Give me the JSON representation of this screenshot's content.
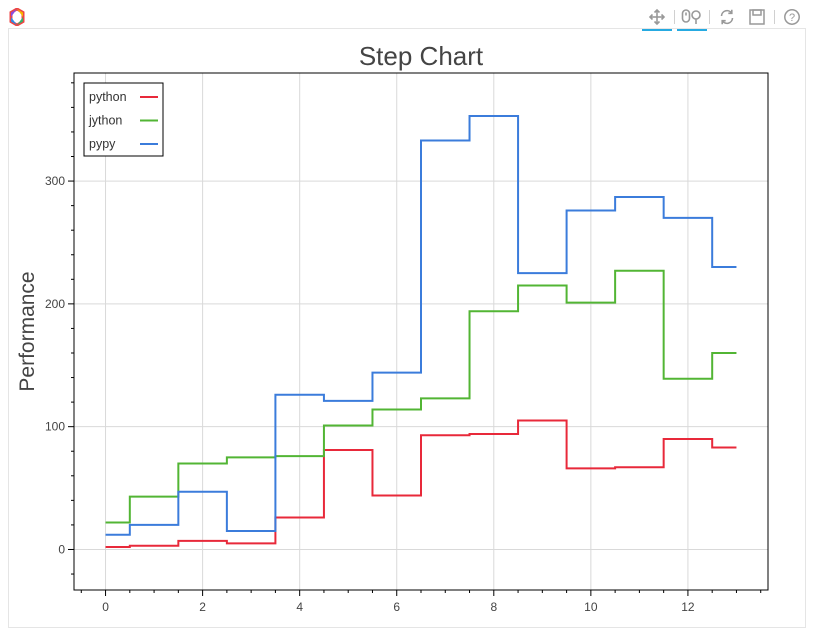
{
  "toolbar": {
    "tools": [
      {
        "name": "pan-tool",
        "icon": "move-arrows-icon",
        "active": true
      },
      {
        "name": "wheel-zoom-tool",
        "icon": "wheel-zoom-icon",
        "active": true
      },
      {
        "name": "reset-tool",
        "icon": "refresh-icon",
        "active": false
      },
      {
        "name": "save-tool",
        "icon": "save-icon",
        "active": false
      },
      {
        "name": "help-tool",
        "icon": "help-circle-icon",
        "active": false
      }
    ],
    "accent": "#26aae1"
  },
  "chart_data": {
    "type": "line",
    "step": true,
    "title": "Step Chart",
    "xlabel": "",
    "ylabel": "Performance",
    "xlim": [
      -0.65,
      13.65
    ],
    "ylim": [
      -33,
      388
    ],
    "xticks": [
      0,
      2,
      4,
      6,
      8,
      10,
      12
    ],
    "yticks": [
      0,
      100,
      200,
      300
    ],
    "grid": true,
    "legend_position": "top-left",
    "x": [
      0,
      1,
      2,
      3,
      4,
      5,
      6,
      7,
      8,
      9,
      10,
      11,
      12,
      13
    ],
    "series": [
      {
        "name": "python",
        "color": "#e8293a",
        "values": [
          2,
          3,
          7,
          5,
          26,
          81,
          44,
          93,
          94,
          105,
          66,
          67,
          90,
          83
        ]
      },
      {
        "name": "jython",
        "color": "#52b534",
        "values": [
          22,
          43,
          70,
          75,
          76,
          101,
          114,
          123,
          194,
          215,
          201,
          227,
          139,
          160
        ]
      },
      {
        "name": "pypy",
        "color": "#3b7cdb",
        "values": [
          12,
          20,
          47,
          15,
          126,
          121,
          144,
          333,
          353,
          225,
          276,
          287,
          270,
          230
        ]
      }
    ]
  }
}
